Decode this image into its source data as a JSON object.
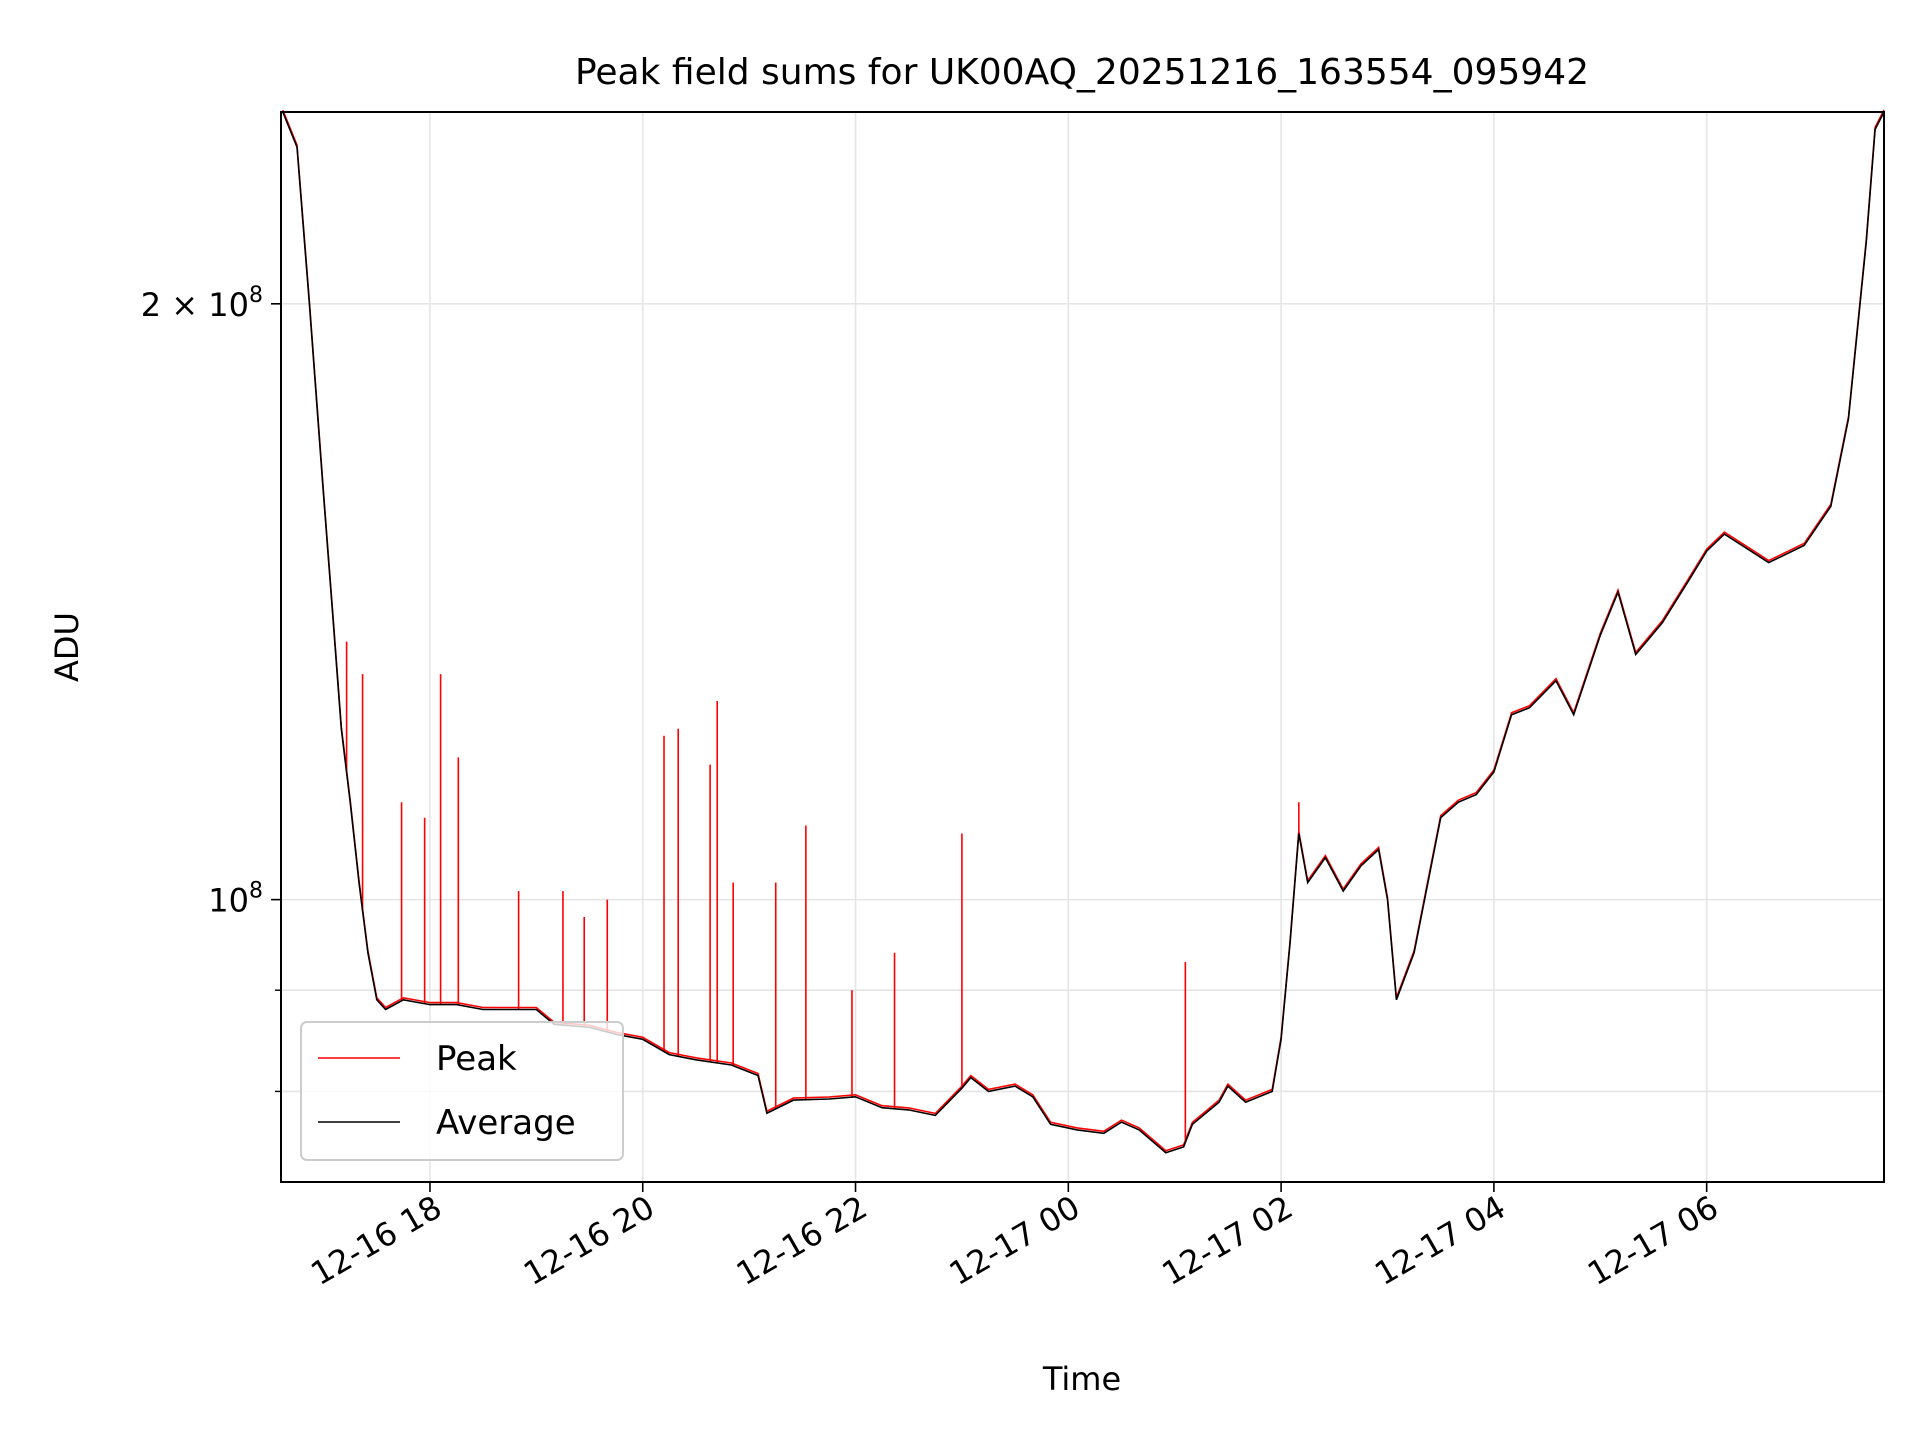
{
  "chart_data": {
    "type": "line",
    "title": "Peak field sums for UK00AQ_20251216_163554_095942",
    "xlabel": "Time",
    "ylabel": "ADU",
    "y_scale": "log",
    "ylim": [
      72000000,
      250000000
    ],
    "xlim": [
      "2025-12-16 16:36",
      "2025-12-17 07:40"
    ],
    "grid": true,
    "legend_position": "lower-left",
    "x_ticks": [
      {
        "value": "2025-12-16 18:00",
        "label": "12-16 18"
      },
      {
        "value": "2025-12-16 20:00",
        "label": "12-16 20"
      },
      {
        "value": "2025-12-16 22:00",
        "label": "12-16 22"
      },
      {
        "value": "2025-12-17 00:00",
        "label": "12-17 00"
      },
      {
        "value": "2025-12-17 02:00",
        "label": "12-17 02"
      },
      {
        "value": "2025-12-17 04:00",
        "label": "12-17 04"
      },
      {
        "value": "2025-12-17 06:00",
        "label": "12-17 06"
      }
    ],
    "y_major_ticks": [
      {
        "value": 100000000,
        "base": "10",
        "exp": "8",
        "coef": ""
      },
      {
        "value": 200000000,
        "base": "10",
        "exp": "8",
        "coef": "2 × "
      }
    ],
    "y_minor_ticks": [
      80000000,
      90000000
    ],
    "series": [
      {
        "name": "Average",
        "color": "#000000",
        "points": [
          [
            "2025-12-16 16:37",
            250000000
          ],
          [
            "2025-12-16 16:45",
            240000000
          ],
          [
            "2025-12-16 16:52",
            200000000
          ],
          [
            "2025-12-16 17:00",
            160000000
          ],
          [
            "2025-12-16 17:05",
            140000000
          ],
          [
            "2025-12-16 17:10",
            122000000
          ],
          [
            "2025-12-16 17:15",
            112000000
          ],
          [
            "2025-12-16 17:20",
            102000000
          ],
          [
            "2025-12-16 17:25",
            94000000
          ],
          [
            "2025-12-16 17:30",
            89000000
          ],
          [
            "2025-12-16 17:35",
            88000000
          ],
          [
            "2025-12-16 17:45",
            89000000
          ],
          [
            "2025-12-16 18:00",
            88500000
          ],
          [
            "2025-12-16 18:15",
            88500000
          ],
          [
            "2025-12-16 18:30",
            88000000
          ],
          [
            "2025-12-16 19:00",
            88000000
          ],
          [
            "2025-12-16 19:10",
            86500000
          ],
          [
            "2025-12-16 19:30",
            86200000
          ],
          [
            "2025-12-16 19:45",
            85500000
          ],
          [
            "2025-12-16 20:00",
            85000000
          ],
          [
            "2025-12-16 20:15",
            83500000
          ],
          [
            "2025-12-16 20:30",
            83000000
          ],
          [
            "2025-12-16 20:50",
            82500000
          ],
          [
            "2025-12-16 21:05",
            81500000
          ],
          [
            "2025-12-16 21:10",
            78000000
          ],
          [
            "2025-12-16 21:25",
            79200000
          ],
          [
            "2025-12-16 21:45",
            79300000
          ],
          [
            "2025-12-16 22:00",
            79500000
          ],
          [
            "2025-12-16 22:15",
            78500000
          ],
          [
            "2025-12-16 22:30",
            78300000
          ],
          [
            "2025-12-16 22:45",
            77800000
          ],
          [
            "2025-12-16 23:00",
            80300000
          ],
          [
            "2025-12-16 23:05",
            81300000
          ],
          [
            "2025-12-16 23:15",
            80000000
          ],
          [
            "2025-12-16 23:30",
            80500000
          ],
          [
            "2025-12-16 23:40",
            79500000
          ],
          [
            "2025-12-16 23:50",
            77000000
          ],
          [
            "2025-12-17 00:05",
            76500000
          ],
          [
            "2025-12-17 00:20",
            76200000
          ],
          [
            "2025-12-17 00:30",
            77200000
          ],
          [
            "2025-12-17 00:40",
            76500000
          ],
          [
            "2025-12-17 00:55",
            74500000
          ],
          [
            "2025-12-17 01:05",
            75000000
          ],
          [
            "2025-12-17 01:10",
            77000000
          ],
          [
            "2025-12-17 01:25",
            79000000
          ],
          [
            "2025-12-17 01:30",
            80500000
          ],
          [
            "2025-12-17 01:40",
            79000000
          ],
          [
            "2025-12-17 01:55",
            80000000
          ],
          [
            "2025-12-17 02:00",
            85000000
          ],
          [
            "2025-12-17 02:05",
            95000000
          ],
          [
            "2025-12-17 02:10",
            108000000
          ],
          [
            "2025-12-17 02:15",
            102000000
          ],
          [
            "2025-12-17 02:25",
            105000000
          ],
          [
            "2025-12-17 02:35",
            101000000
          ],
          [
            "2025-12-17 02:45",
            104000000
          ],
          [
            "2025-12-17 02:55",
            106000000
          ],
          [
            "2025-12-17 03:00",
            100000000
          ],
          [
            "2025-12-17 03:05",
            89000000
          ],
          [
            "2025-12-17 03:15",
            94000000
          ],
          [
            "2025-12-17 03:30",
            110000000
          ],
          [
            "2025-12-17 03:40",
            112000000
          ],
          [
            "2025-12-17 03:50",
            113000000
          ],
          [
            "2025-12-17 04:00",
            116000000
          ],
          [
            "2025-12-17 04:10",
            124000000
          ],
          [
            "2025-12-17 04:20",
            125000000
          ],
          [
            "2025-12-17 04:35",
            129000000
          ],
          [
            "2025-12-17 04:45",
            124000000
          ],
          [
            "2025-12-17 05:00",
            136000000
          ],
          [
            "2025-12-17 05:10",
            143000000
          ],
          [
            "2025-12-17 05:20",
            133000000
          ],
          [
            "2025-12-17 05:35",
            138000000
          ],
          [
            "2025-12-17 05:50",
            145000000
          ],
          [
            "2025-12-17 06:00",
            150000000
          ],
          [
            "2025-12-17 06:10",
            153000000
          ],
          [
            "2025-12-17 06:20",
            151000000
          ],
          [
            "2025-12-17 06:35",
            148000000
          ],
          [
            "2025-12-17 06:55",
            151000000
          ],
          [
            "2025-12-17 07:10",
            158000000
          ],
          [
            "2025-12-17 07:20",
            175000000
          ],
          [
            "2025-12-17 07:30",
            215000000
          ],
          [
            "2025-12-17 07:35",
            245000000
          ],
          [
            "2025-12-17 07:40",
            250000000
          ]
        ]
      },
      {
        "name": "Peak",
        "color": "#ff0000",
        "spikes": [
          [
            "2025-12-16 17:13",
            135000000
          ],
          [
            "2025-12-16 17:22",
            130000000
          ],
          [
            "2025-12-16 17:44",
            112000000
          ],
          [
            "2025-12-16 17:57",
            110000000
          ],
          [
            "2025-12-16 18:06",
            130000000
          ],
          [
            "2025-12-16 18:16",
            118000000
          ],
          [
            "2025-12-16 18:50",
            101000000
          ],
          [
            "2025-12-16 19:15",
            101000000
          ],
          [
            "2025-12-16 19:27",
            98000000
          ],
          [
            "2025-12-16 19:40",
            100000000
          ],
          [
            "2025-12-16 20:12",
            121000000
          ],
          [
            "2025-12-16 20:20",
            122000000
          ],
          [
            "2025-12-16 20:38",
            117000000
          ],
          [
            "2025-12-16 20:42",
            126000000
          ],
          [
            "2025-12-16 20:51",
            102000000
          ],
          [
            "2025-12-16 21:15",
            102000000
          ],
          [
            "2025-12-16 21:32",
            109000000
          ],
          [
            "2025-12-16 21:58",
            90000000
          ],
          [
            "2025-12-16 22:22",
            94000000
          ],
          [
            "2025-12-16 23:00",
            108000000
          ],
          [
            "2025-12-17 01:06",
            93000000
          ],
          [
            "2025-12-17 02:10",
            112000000
          ]
        ]
      }
    ]
  }
}
